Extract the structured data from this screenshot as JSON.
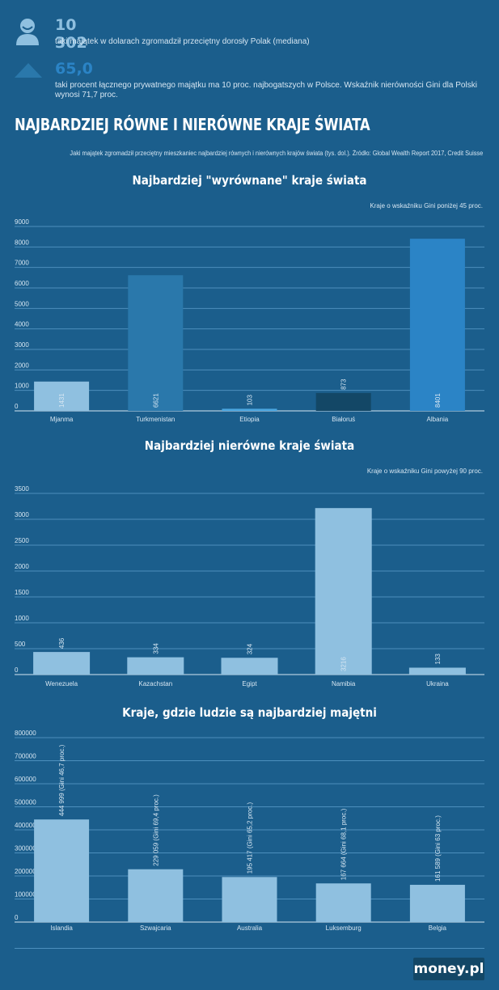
{
  "stats": [
    {
      "value": "10 302",
      "desc": "taki majątek w dolarach zgromadził przeciętny dorosły Polak (mediana)",
      "icon": "user-icon"
    },
    {
      "value": "65,0",
      "desc": "taki procent łącznego prywatnego majątku ma 10 proc. najbogatszych w Polsce. Wskaźnik nierówności Gini dla Polski wynosi 71,7 proc.",
      "icon": "triangle-icon"
    }
  ],
  "heading": "NAJBARDZIEJ RÓWNE I NIERÓWNE KRAJE ŚWIATA",
  "subtitle": "Jaki majątek zgromadził przeciętny mieszkaniec najbardziej równych i nierównych krajów świata (tys. dol.). Źródło: Global Wealth Report 2017, Credit Suisse",
  "logo": "money.pl",
  "colors": {
    "background": "#1b5e8c",
    "grid": "#4c8fbd",
    "light_bar": "#8fc0e0"
  },
  "chart_data": [
    {
      "type": "bar",
      "title": "Najbardziej \"wyrównane\" kraje świata",
      "note": "Kraje o wskaźniku Gini poniżej 45 proc.",
      "categories": [
        "Mjanma",
        "Turkmenistan",
        "Etiopia",
        "Białoruś",
        "Albania"
      ],
      "values": [
        1431,
        6621,
        103,
        873,
        8401
      ],
      "labels": [
        "1431",
        "6621",
        "103",
        "873",
        "8401"
      ],
      "bar_colors": [
        "#8fc0e0",
        "#2a78ab",
        "#4aa6e0",
        "#134766",
        "#2b84c6"
      ],
      "yticks": [
        "0",
        "1000",
        "2000",
        "3000",
        "4000",
        "5000",
        "6000",
        "7000",
        "8000",
        "9000"
      ],
      "ylim": [
        0,
        9000
      ]
    },
    {
      "type": "bar",
      "title": "Najbardziej nierówne kraje świata",
      "note": "Kraje o wskaźniku Gini powyżej 90 proc.",
      "categories": [
        "Wenezuela",
        "Kazachstan",
        "Egipt",
        "Namibia",
        "Ukraina"
      ],
      "values": [
        436,
        334,
        324,
        3216,
        133
      ],
      "labels": [
        "436",
        "334",
        "324",
        "3216",
        "133"
      ],
      "bar_colors": [
        "#8fc0e0",
        "#8fc0e0",
        "#8fc0e0",
        "#8fc0e0",
        "#8fc0e0"
      ],
      "yticks": [
        "0",
        "500",
        "1000",
        "1500",
        "2000",
        "2500",
        "3000",
        "3500"
      ],
      "ylim": [
        0,
        3500
      ]
    },
    {
      "type": "bar",
      "title": "Kraje, gdzie ludzie są najbardziej majętni",
      "note": "",
      "categories": [
        "Islandia",
        "Szwajcaria",
        "Australia",
        "Luksemburg",
        "Belgia"
      ],
      "values": [
        444999,
        229059,
        195417,
        167664,
        161589
      ],
      "labels": [
        "444 999 (Gini 46,7 proc.)",
        "229 059 (Gini 69,4 proc.)",
        "195 417 (Gini 65,2 proc.)",
        "167 664 (Gini 68,1 proc.)",
        "161 589 (Gini 63 proc.)"
      ],
      "bar_colors": [
        "#8fc0e0",
        "#8fc0e0",
        "#8fc0e0",
        "#8fc0e0",
        "#8fc0e0"
      ],
      "yticks": [
        "0",
        "100000",
        "200000",
        "300000",
        "400000",
        "500000",
        "600000",
        "700000",
        "800000"
      ],
      "ylim": [
        0,
        800000
      ]
    }
  ]
}
